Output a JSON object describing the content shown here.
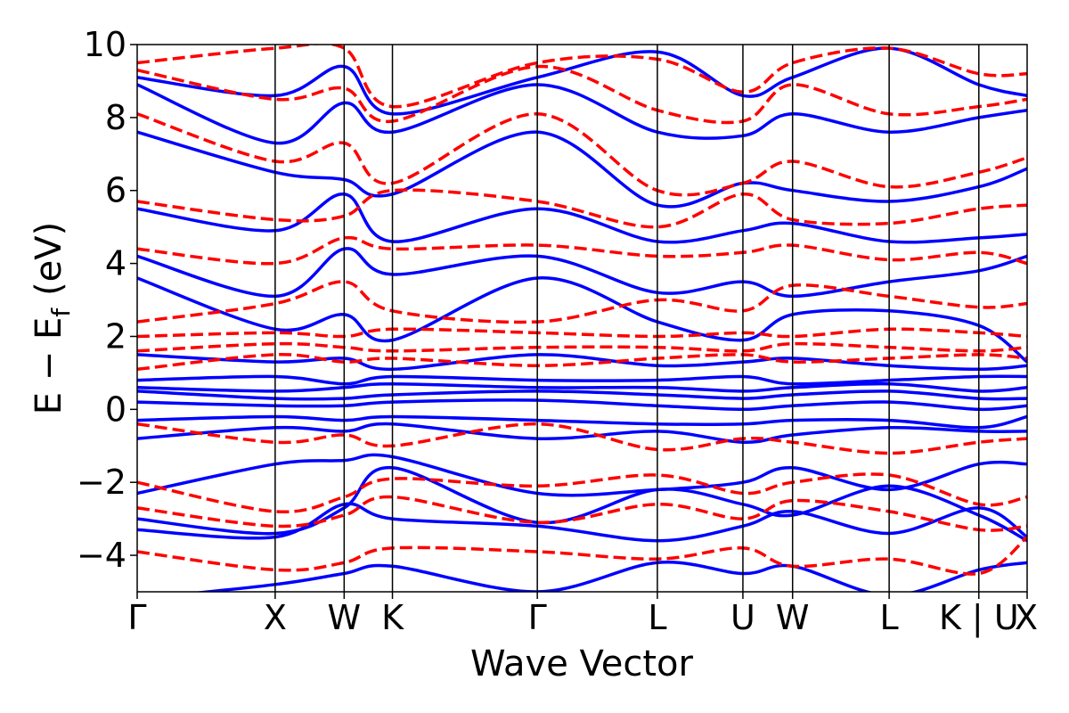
{
  "chart_data": {
    "type": "line",
    "title": "",
    "xlabel": "Wave Vector",
    "ylabel": {
      "main": "E − E",
      "subscript": "f",
      "unit": "(eV)"
    },
    "ylim": [
      -5,
      10
    ],
    "xlim": [
      0,
      6.45
    ],
    "y_ticks": [
      -4,
      -2,
      0,
      2,
      4,
      6,
      8,
      10
    ],
    "y_tick_labels": [
      "−4",
      "−2",
      "0",
      "2",
      "4",
      "6",
      "8",
      "10"
    ],
    "k_points": [
      {
        "label": "Γ",
        "x": 0
      },
      {
        "label": "X",
        "x": 1.0
      },
      {
        "label": "W",
        "x": 1.5
      },
      {
        "label": "K",
        "x": 1.85
      },
      {
        "label": "Γ",
        "x": 2.9
      },
      {
        "label": "L",
        "x": 3.77
      },
      {
        "label": "U",
        "x": 4.39
      },
      {
        "label": "W",
        "x": 4.75
      },
      {
        "label": "L",
        "x": 5.45
      },
      {
        "label": "K | U",
        "x": 6.1
      },
      {
        "label": "X",
        "x": 6.45
      }
    ],
    "colors": {
      "series_a": "#0000ff",
      "series_b": "#ff0000"
    },
    "series": [
      {
        "name": "solid",
        "style": "solid",
        "color": "#0000ff",
        "bands": [
          [
            -5.2,
            -4.8,
            -4.5,
            -4.3,
            -5.0,
            -4.2,
            -4.5,
            -4.3,
            -5.1,
            -4.4,
            -4.2
          ],
          [
            -3.3,
            -3.5,
            -2.6,
            -3.0,
            -3.2,
            -3.6,
            -3.2,
            -2.8,
            -3.4,
            -2.7,
            -3.5
          ],
          [
            -3.0,
            -3.4,
            -2.7,
            -1.6,
            -3.1,
            -2.2,
            -2.6,
            -2.9,
            -2.1,
            -2.9,
            -3.6
          ],
          [
            -2.3,
            -1.5,
            -1.4,
            -1.3,
            -2.3,
            -2.2,
            -2.0,
            -1.6,
            -2.2,
            -1.5,
            -1.5
          ],
          [
            -0.8,
            -0.5,
            -0.6,
            -0.4,
            -0.8,
            -0.6,
            -0.9,
            -0.7,
            -0.5,
            -0.6,
            -0.6
          ],
          [
            -0.3,
            -0.2,
            -0.3,
            -0.2,
            -0.3,
            -0.4,
            -0.4,
            -0.3,
            -0.3,
            -0.5,
            -0.2
          ],
          [
            0.2,
            0.1,
            0.1,
            0.2,
            0.25,
            0.1,
            0.0,
            0.1,
            0.2,
            0.0,
            0.1
          ],
          [
            0.5,
            0.3,
            0.3,
            0.4,
            0.5,
            0.4,
            0.3,
            0.4,
            0.5,
            0.3,
            0.3
          ],
          [
            0.6,
            0.5,
            0.6,
            0.7,
            0.6,
            0.6,
            0.5,
            0.6,
            0.7,
            0.5,
            0.6
          ],
          [
            0.8,
            0.9,
            0.7,
            0.9,
            0.8,
            0.8,
            0.9,
            0.7,
            0.8,
            0.9,
            0.9
          ],
          [
            1.5,
            1.3,
            1.4,
            1.1,
            1.5,
            1.2,
            1.3,
            1.4,
            1.2,
            1.1,
            1.2
          ],
          [
            3.6,
            2.2,
            2.6,
            1.9,
            3.6,
            2.4,
            1.9,
            2.6,
            2.7,
            2.3,
            1.3
          ],
          [
            4.2,
            3.1,
            4.4,
            3.7,
            4.2,
            3.2,
            3.5,
            3.1,
            3.5,
            3.8,
            4.2
          ],
          [
            5.5,
            4.9,
            5.9,
            4.6,
            5.5,
            4.6,
            4.9,
            5.1,
            4.6,
            4.7,
            4.8
          ],
          [
            7.6,
            6.5,
            6.3,
            5.9,
            7.6,
            5.6,
            6.2,
            6.0,
            5.7,
            6.1,
            6.6
          ],
          [
            8.9,
            7.3,
            8.4,
            7.6,
            8.9,
            7.6,
            7.5,
            8.1,
            7.6,
            8.0,
            8.2
          ],
          [
            9.1,
            8.6,
            9.4,
            8.1,
            9.1,
            9.8,
            8.6,
            9.1,
            9.9,
            8.9,
            8.6
          ]
        ]
      },
      {
        "name": "dashed",
        "style": "dashed",
        "color": "#ff0000",
        "bands": [
          [
            -3.9,
            -4.4,
            -4.2,
            -3.8,
            -3.9,
            -4.1,
            -3.8,
            -4.3,
            -4.1,
            -4.5,
            -3.5
          ],
          [
            -2.7,
            -3.2,
            -2.9,
            -2.4,
            -3.1,
            -2.6,
            -3.0,
            -2.5,
            -2.8,
            -3.3,
            -3.2
          ],
          [
            -2.0,
            -2.8,
            -2.4,
            -1.9,
            -2.1,
            -1.8,
            -2.3,
            -2.0,
            -1.8,
            -2.6,
            -2.4
          ],
          [
            -0.4,
            -0.9,
            -0.7,
            -1.0,
            -0.4,
            -1.1,
            -0.8,
            -0.9,
            -1.2,
            -0.9,
            -0.8
          ],
          [
            1.1,
            1.5,
            1.3,
            1.4,
            1.2,
            1.4,
            1.5,
            1.3,
            1.4,
            1.5,
            1.4
          ],
          [
            1.6,
            1.8,
            1.7,
            1.6,
            1.7,
            1.7,
            1.6,
            1.8,
            1.7,
            1.6,
            1.7
          ],
          [
            2.0,
            2.1,
            2.0,
            2.2,
            2.1,
            2.0,
            2.1,
            2.0,
            2.2,
            2.1,
            2.0
          ],
          [
            2.4,
            2.9,
            3.5,
            2.7,
            2.4,
            3.0,
            2.7,
            3.4,
            3.1,
            2.8,
            2.9
          ],
          [
            4.4,
            4.0,
            4.7,
            4.4,
            4.5,
            4.2,
            4.3,
            4.5,
            4.1,
            4.3,
            4.0
          ],
          [
            5.7,
            5.2,
            5.3,
            6.0,
            5.7,
            5.0,
            5.9,
            5.2,
            5.1,
            5.5,
            5.6
          ],
          [
            8.1,
            6.8,
            7.3,
            6.2,
            8.1,
            6.0,
            6.2,
            6.8,
            6.1,
            6.5,
            6.9
          ],
          [
            9.3,
            8.5,
            8.8,
            7.9,
            9.4,
            8.2,
            7.9,
            8.9,
            8.1,
            8.3,
            8.5
          ],
          [
            9.5,
            9.9,
            9.9,
            8.3,
            9.5,
            9.6,
            8.7,
            9.5,
            9.9,
            9.2,
            9.2
          ]
        ]
      }
    ]
  }
}
